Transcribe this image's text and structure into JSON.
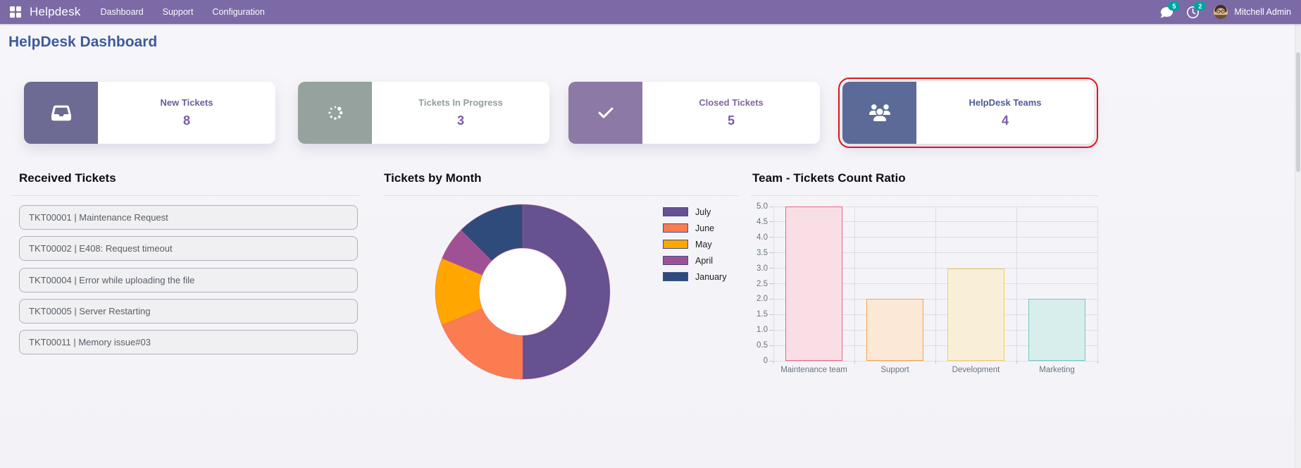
{
  "navbar": {
    "brand": "Helpdesk",
    "menu": [
      "Dashboard",
      "Support",
      "Configuration"
    ],
    "messages_badge": "5",
    "activities_badge": "2",
    "user_name": "Mitchell Admin",
    "bar_color": "#7c6aa6",
    "badge_color": "#00a39e"
  },
  "page": {
    "title": "HelpDesk Dashboard",
    "title_color": "#3e5a9a"
  },
  "kpi": {
    "value_color": "#7b5aad",
    "highlight_color": "#e8131d",
    "cards": [
      {
        "label": "New Tickets",
        "value": "8",
        "icon": "inbox-icon",
        "tile_color": "#6d6a93",
        "label_color": "#6a5ba0",
        "highlight": false
      },
      {
        "label": "Tickets In Progress",
        "value": "3",
        "icon": "spinner-icon",
        "tile_color": "#95a29e",
        "label_color": "#90a09b",
        "highlight": false
      },
      {
        "label": "Closed Tickets",
        "value": "5",
        "icon": "check-icon",
        "tile_color": "#8c79a5",
        "label_color": "#7c689f",
        "highlight": false
      },
      {
        "label": "HelpDesk Teams",
        "value": "4",
        "icon": "team-icon",
        "tile_color": "#5c6a97",
        "label_color": "#4d5c97",
        "highlight": true
      }
    ]
  },
  "received_tickets": {
    "title": "Received Tickets",
    "items": [
      "TKT00001 | Maintenance Request",
      "TKT00002 | E408: Request timeout",
      "TKT00004 | Error while uploading the file",
      "TKT00005 | Server Restarting",
      "TKT00011 | Memory issue#03"
    ]
  },
  "chart_data": [
    {
      "type": "pie",
      "title": "Tickets by Month",
      "labels": [
        "July",
        "June",
        "May",
        "April",
        "January"
      ],
      "values": [
        8,
        3,
        2,
        1,
        2
      ],
      "colors": [
        "#665191",
        "#fb7c50",
        "#ffa600",
        "#a05195",
        "#2f4b7c"
      ],
      "donut_hole_ratio": 0.5,
      "legend_position": "right",
      "border_color": "#d85a7c",
      "legend_swatch_border": "#39538a"
    },
    {
      "type": "bar",
      "title": "Team - Tickets Count Ratio",
      "categories": [
        "Maintenance team",
        "Support",
        "Development",
        "Marketing"
      ],
      "values": [
        5,
        2,
        3,
        2
      ],
      "fill_colors": [
        "#fadee6",
        "#fbe8d6",
        "#f9efd8",
        "#d8eeed"
      ],
      "border_colors": [
        "#ee6487",
        "#f5a24e",
        "#f6cb64",
        "#72c6c8"
      ],
      "ylim": [
        0,
        5
      ],
      "ytick_step": 0.5,
      "yticks": [
        "0",
        "0.5",
        "1.0",
        "1.5",
        "2.0",
        "2.5",
        "3.0",
        "3.5",
        "4.0",
        "4.5",
        "5.0"
      ],
      "grid": true,
      "grid_color": "#dcdce2",
      "axis_label_color": "#6a737d"
    }
  ]
}
